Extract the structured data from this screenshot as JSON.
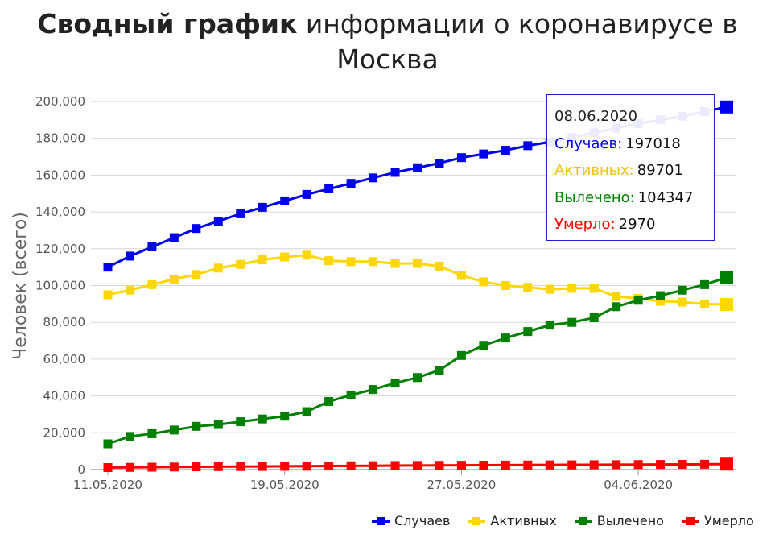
{
  "title": {
    "bold": "Сводный график",
    "rest": " информации о коронавирусе в Москва"
  },
  "chart_data": {
    "type": "line",
    "title": "Сводный график информации о коронавирусе в Москва",
    "ylabel": "Человек (всего)",
    "xlabel": "",
    "ylim": [
      0,
      200000
    ],
    "yticks": [
      "0",
      "20,000",
      "40,000",
      "60,000",
      "80,000",
      "100,000",
      "120,000",
      "140,000",
      "160,000",
      "180,000",
      "200,000"
    ],
    "xticks": [
      {
        "label": "11.05.2020",
        "index": 0
      },
      {
        "label": "19.05.2020",
        "index": 8
      },
      {
        "label": "27.05.2020",
        "index": 16
      },
      {
        "label": "04.06.2020",
        "index": 24
      }
    ],
    "grid": true,
    "legend_position": "bottom-right",
    "x": [
      "11.05.2020",
      "12.05.2020",
      "13.05.2020",
      "14.05.2020",
      "15.05.2020",
      "16.05.2020",
      "17.05.2020",
      "18.05.2020",
      "19.05.2020",
      "20.05.2020",
      "21.05.2020",
      "22.05.2020",
      "23.05.2020",
      "24.05.2020",
      "25.05.2020",
      "26.05.2020",
      "27.05.2020",
      "28.05.2020",
      "29.05.2020",
      "30.05.2020",
      "31.05.2020",
      "01.06.2020",
      "02.06.2020",
      "03.06.2020",
      "04.06.2020",
      "05.06.2020",
      "06.06.2020",
      "07.06.2020",
      "08.06.2020"
    ],
    "series": [
      {
        "name": "Случаев",
        "color": "#0000ee",
        "values": [
          110000,
          116000,
          121000,
          126000,
          131000,
          135000,
          139000,
          142500,
          146000,
          149500,
          152500,
          155500,
          158500,
          161500,
          164000,
          166500,
          169500,
          171500,
          173500,
          176000,
          178000,
          180500,
          183000,
          185500,
          188000,
          190000,
          192000,
          194500,
          197018
        ]
      },
      {
        "name": "Активных",
        "color": "#ffd700",
        "values": [
          95000,
          97500,
          100500,
          103500,
          106000,
          109500,
          111500,
          114000,
          115500,
          116500,
          113500,
          113000,
          113000,
          112000,
          112000,
          110500,
          105500,
          102000,
          100000,
          99000,
          98000,
          98500,
          98500,
          94000,
          93000,
          91500,
          91000,
          90000,
          89701
        ]
      },
      {
        "name": "Вылечено",
        "color": "#008000",
        "values": [
          14000,
          18000,
          19500,
          21500,
          23500,
          24500,
          26000,
          27500,
          29000,
          31500,
          37000,
          40500,
          43500,
          47000,
          50000,
          54000,
          62000,
          67500,
          71500,
          75000,
          78500,
          80000,
          82500,
          88500,
          92000,
          94500,
          97500,
          100500,
          104347
        ]
      },
      {
        "name": "Умерло",
        "color": "#ff0000",
        "values": [
          1100,
          1200,
          1300,
          1400,
          1500,
          1600,
          1650,
          1700,
          1800,
          1850,
          1950,
          2050,
          2100,
          2200,
          2250,
          2300,
          2350,
          2400,
          2450,
          2500,
          2550,
          2600,
          2650,
          2700,
          2750,
          2800,
          2850,
          2900,
          2970
        ]
      }
    ],
    "tooltip": {
      "date": "08.06.2020",
      "rows": [
        {
          "label": "Случаев:",
          "value": "197018",
          "color": "#0000ee"
        },
        {
          "label": "Активных:",
          "value": "89701",
          "color": "#ffd700"
        },
        {
          "label": "Вылечено:",
          "value": "104347",
          "color": "#008000"
        },
        {
          "label": "Умерло:",
          "value": "2970",
          "color": "#ff0000"
        }
      ]
    }
  }
}
